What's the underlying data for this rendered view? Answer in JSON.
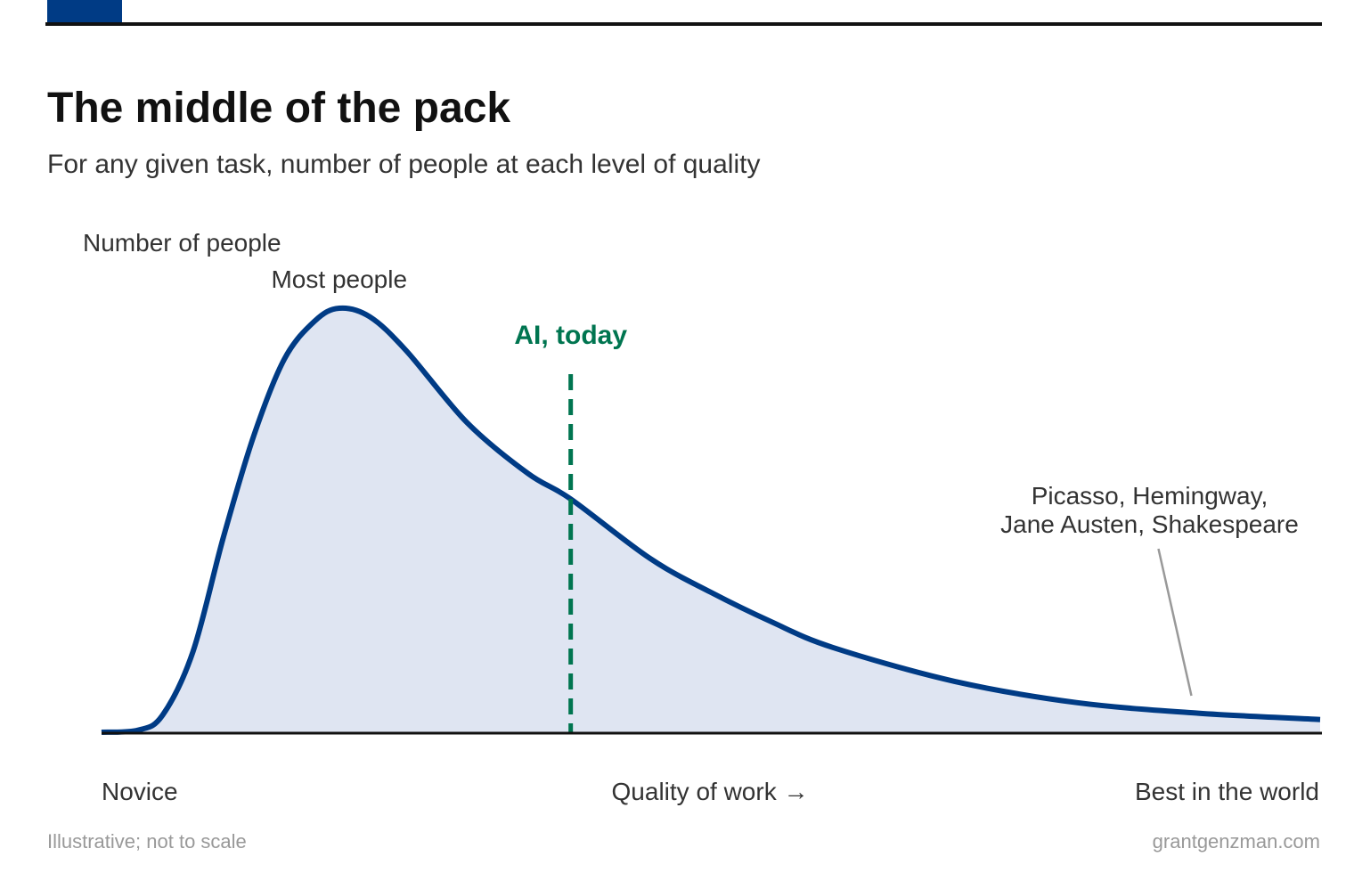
{
  "colors": {
    "accent": "#003b85",
    "curve": "#003b85",
    "fill": "#dfe5f2",
    "marker": "#007550",
    "text": "#333333",
    "muted": "#999999"
  },
  "header": {
    "title": "The middle of the pack",
    "subtitle": "For any given task, number of people at each level of quality"
  },
  "footer": {
    "note": "Illustrative; not to scale",
    "source": "grantgenzman.com"
  },
  "chart_data": {
    "type": "area",
    "ylabel": "Number of people",
    "xlabel": "Quality of work →",
    "x_tick_labels": [
      "Novice",
      "Best in the world"
    ],
    "xlim": [
      0,
      1
    ],
    "ylim": [
      0,
      1
    ],
    "grid": false,
    "legend": "none",
    "series": [
      {
        "x": [
          0,
          0.03,
          0.05,
          0.075,
          0.1,
          0.125,
          0.15,
          0.175,
          0.195,
          0.22,
          0.25,
          0.3,
          0.35,
          0.385,
          0.45,
          0.5,
          0.55,
          0.6,
          0.7,
          0.8,
          0.9,
          1
        ],
        "y": [
          0,
          0.005,
          0.04,
          0.19,
          0.46,
          0.7,
          0.88,
          0.97,
          1.0,
          0.98,
          0.9,
          0.73,
          0.61,
          0.55,
          0.41,
          0.33,
          0.26,
          0.2,
          0.12,
          0.07,
          0.045,
          0.03
        ]
      }
    ],
    "annotations": {
      "peak": {
        "text": "Most people",
        "x": 0.195
      },
      "marker": {
        "text": "AI, today",
        "x": 0.385
      },
      "tail": {
        "lines": [
          "Picasso, Hemingway,",
          "Jane Austen, Shakespeare"
        ],
        "x": 0.86
      }
    }
  }
}
